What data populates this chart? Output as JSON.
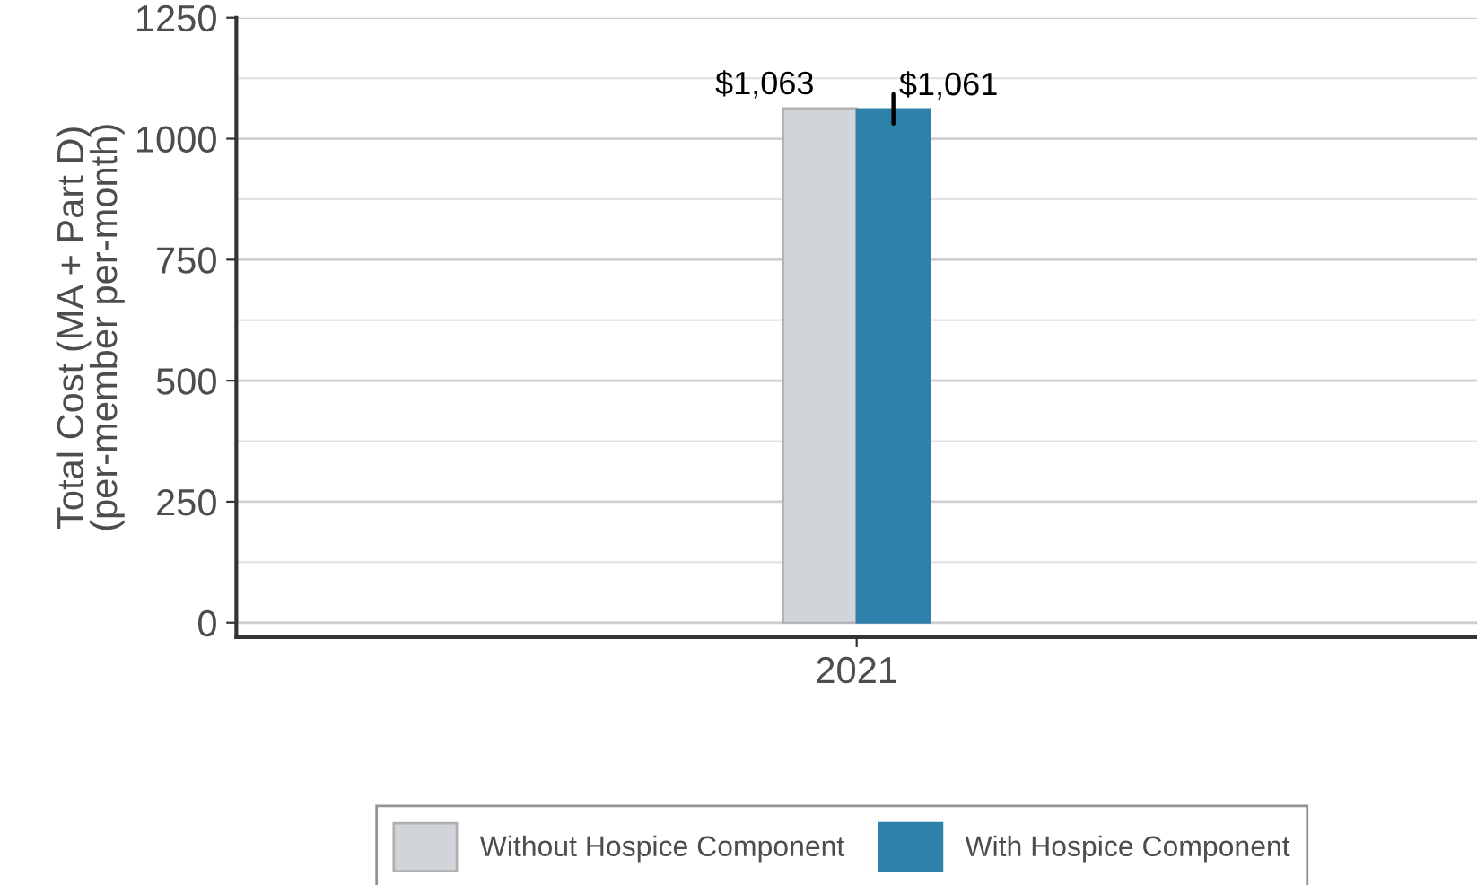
{
  "chart_data": {
    "type": "bar",
    "categories": [
      "2021"
    ],
    "ylabel": "Total Cost (MA + Part D)\n(per-member per-month)",
    "series": [
      {
        "name": "Without Hospice Component",
        "color": "#d1d4d8",
        "values": [
          1063
        ],
        "value_labels": [
          "$1,063"
        ]
      },
      {
        "name": "With Hospice Component",
        "color": "#2e81ab",
        "values": [
          1061
        ],
        "value_labels": [
          "$1,061"
        ],
        "errors": [
          [
            1031,
            1092
          ]
        ]
      }
    ],
    "ylim": [
      -30,
      1250
    ],
    "yticks": [
      0,
      250,
      500,
      750,
      1000,
      1250
    ],
    "grid": "y",
    "legend": "bottom"
  }
}
